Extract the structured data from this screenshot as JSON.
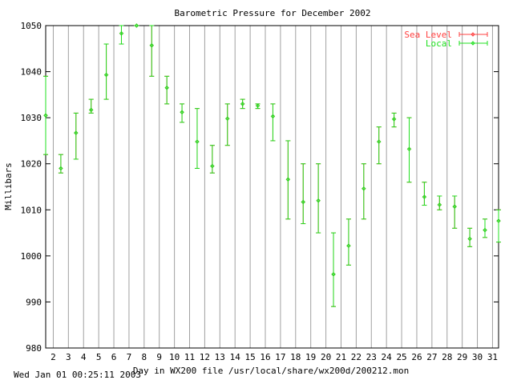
{
  "chart_data": {
    "type": "errorbar",
    "title": "Barometric Pressure for December 2002",
    "xlabel": "Day in WX200 file /usr/local/share/wx200d/200212.mon",
    "ylabel": "Millibars",
    "ylim": [
      980,
      1050
    ],
    "xlim": [
      1.5,
      31.4
    ],
    "yticks": [
      980,
      990,
      1000,
      1010,
      1020,
      1030,
      1040,
      1050
    ],
    "xticks": [
      2,
      3,
      4,
      5,
      6,
      7,
      8,
      9,
      10,
      11,
      12,
      13,
      14,
      15,
      16,
      17,
      18,
      19,
      20,
      21,
      22,
      23,
      24,
      25,
      26,
      27,
      28,
      29,
      30,
      31
    ],
    "grid": true,
    "legend_position": "top-right",
    "series": [
      {
        "name": "Sea Level",
        "color": "#ff4040",
        "points": [
          {
            "x": 1.5,
            "y": 1030.5,
            "low": 1022,
            "high": 1039
          },
          {
            "x": 2.5,
            "y": 1019,
            "low": 1018,
            "high": 1022
          },
          {
            "x": 3.5,
            "y": 1026.7,
            "low": 1021,
            "high": 1031
          },
          {
            "x": 4.5,
            "y": 1031.7,
            "low": 1031,
            "high": 1034
          },
          {
            "x": 5.5,
            "y": 1039.3,
            "low": 1034,
            "high": 1046
          },
          {
            "x": 6.5,
            "y": 1048.3,
            "low": 1046,
            "high": 1050
          },
          {
            "x": 7.5,
            "y": 1050,
            "low": 1050,
            "high": 1050
          },
          {
            "x": 8.5,
            "y": 1045.7,
            "low": 1039,
            "high": 1050
          },
          {
            "x": 9.5,
            "y": 1036.5,
            "low": 1033,
            "high": 1039
          },
          {
            "x": 10.5,
            "y": 1031.2,
            "low": 1029,
            "high": 1033
          },
          {
            "x": 11.5,
            "y": 1024.8,
            "low": 1019,
            "high": 1032
          },
          {
            "x": 12.5,
            "y": 1019.5,
            "low": 1018,
            "high": 1024
          },
          {
            "x": 13.5,
            "y": 1029.8,
            "low": 1024,
            "high": 1033
          },
          {
            "x": 14.5,
            "y": 1033,
            "low": 1032,
            "high": 1034
          },
          {
            "x": 15.5,
            "y": 1032.6,
            "low": 1032,
            "high": 1033
          },
          {
            "x": 16.5,
            "y": 1030.3,
            "low": 1025,
            "high": 1033
          },
          {
            "x": 17.5,
            "y": 1016.6,
            "low": 1008,
            "high": 1025
          },
          {
            "x": 18.5,
            "y": 1011.7,
            "low": 1007,
            "high": 1020
          },
          {
            "x": 19.5,
            "y": 1012,
            "low": 1005,
            "high": 1020
          },
          {
            "x": 20.5,
            "y": 996,
            "low": 989,
            "high": 1005
          },
          {
            "x": 21.5,
            "y": 1002.2,
            "low": 998,
            "high": 1008
          },
          {
            "x": 22.5,
            "y": 1014.6,
            "low": 1008,
            "high": 1020
          },
          {
            "x": 23.5,
            "y": 1024.8,
            "low": 1020,
            "high": 1028
          },
          {
            "x": 24.5,
            "y": 1029.7,
            "low": 1028,
            "high": 1031
          },
          {
            "x": 25.5,
            "y": 1023.2,
            "low": 1016,
            "high": 1030
          },
          {
            "x": 26.5,
            "y": 1012.8,
            "low": 1011,
            "high": 1016
          },
          {
            "x": 27.5,
            "y": 1011.1,
            "low": 1010,
            "high": 1013
          },
          {
            "x": 28.5,
            "y": 1010.7,
            "low": 1006,
            "high": 1013
          },
          {
            "x": 29.5,
            "y": 1003.7,
            "low": 1002,
            "high": 1006
          },
          {
            "x": 30.5,
            "y": 1005.6,
            "low": 1004,
            "high": 1008
          },
          {
            "x": 31.4,
            "y": 1007.6,
            "low": 1003,
            "high": 1010
          }
        ]
      },
      {
        "name": "Local",
        "color": "#20e020",
        "points": [
          {
            "x": 1.5,
            "y": 1030.5,
            "low": 1022,
            "high": 1039
          },
          {
            "x": 2.5,
            "y": 1019,
            "low": 1018,
            "high": 1022
          },
          {
            "x": 3.5,
            "y": 1026.7,
            "low": 1021,
            "high": 1031
          },
          {
            "x": 4.5,
            "y": 1031.7,
            "low": 1031,
            "high": 1034
          },
          {
            "x": 5.5,
            "y": 1039.3,
            "low": 1034,
            "high": 1046
          },
          {
            "x": 6.5,
            "y": 1048.3,
            "low": 1046,
            "high": 1050
          },
          {
            "x": 7.5,
            "y": 1050,
            "low": 1050,
            "high": 1050
          },
          {
            "x": 8.5,
            "y": 1045.7,
            "low": 1039,
            "high": 1050
          },
          {
            "x": 9.5,
            "y": 1036.5,
            "low": 1033,
            "high": 1039
          },
          {
            "x": 10.5,
            "y": 1031.2,
            "low": 1029,
            "high": 1033
          },
          {
            "x": 11.5,
            "y": 1024.8,
            "low": 1019,
            "high": 1032
          },
          {
            "x": 12.5,
            "y": 1019.5,
            "low": 1018,
            "high": 1024
          },
          {
            "x": 13.5,
            "y": 1029.8,
            "low": 1024,
            "high": 1033
          },
          {
            "x": 14.5,
            "y": 1033,
            "low": 1032,
            "high": 1034
          },
          {
            "x": 15.5,
            "y": 1032.6,
            "low": 1032,
            "high": 1033
          },
          {
            "x": 16.5,
            "y": 1030.3,
            "low": 1025,
            "high": 1033
          },
          {
            "x": 17.5,
            "y": 1016.6,
            "low": 1008,
            "high": 1025
          },
          {
            "x": 18.5,
            "y": 1011.7,
            "low": 1007,
            "high": 1020
          },
          {
            "x": 19.5,
            "y": 1012,
            "low": 1005,
            "high": 1020
          },
          {
            "x": 20.5,
            "y": 996,
            "low": 989,
            "high": 1005
          },
          {
            "x": 21.5,
            "y": 1002.2,
            "low": 998,
            "high": 1008
          },
          {
            "x": 22.5,
            "y": 1014.6,
            "low": 1008,
            "high": 1020
          },
          {
            "x": 23.5,
            "y": 1024.8,
            "low": 1020,
            "high": 1028
          },
          {
            "x": 24.5,
            "y": 1029.7,
            "low": 1028,
            "high": 1031
          },
          {
            "x": 25.5,
            "y": 1023.2,
            "low": 1016,
            "high": 1030
          },
          {
            "x": 26.5,
            "y": 1012.8,
            "low": 1011,
            "high": 1016
          },
          {
            "x": 27.5,
            "y": 1011.1,
            "low": 1010,
            "high": 1013
          },
          {
            "x": 28.5,
            "y": 1010.7,
            "low": 1006,
            "high": 1013
          },
          {
            "x": 29.5,
            "y": 1003.7,
            "low": 1002,
            "high": 1006
          },
          {
            "x": 30.5,
            "y": 1005.6,
            "low": 1004,
            "high": 1008
          },
          {
            "x": 31.4,
            "y": 1007.6,
            "low": 1003,
            "high": 1010
          }
        ]
      }
    ]
  },
  "footer": {
    "timestamp": "Wed Jan 01 00:25:11 2003"
  }
}
